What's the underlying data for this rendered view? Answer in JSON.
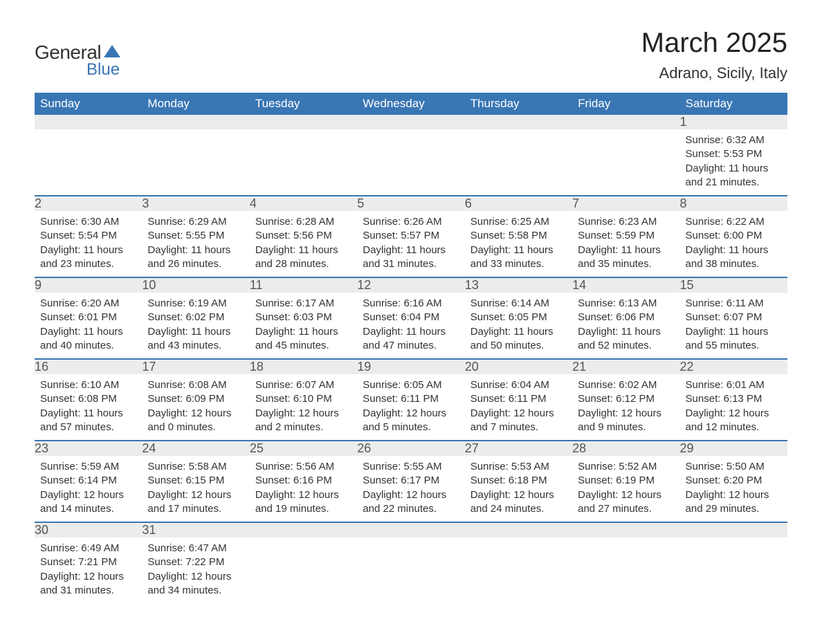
{
  "logo": {
    "general": "General",
    "blue": "Blue",
    "sail_color": "#3976b4"
  },
  "title": {
    "month_year": "March 2025",
    "location": "Adrano, Sicily, Italy"
  },
  "colors": {
    "header_bg": "#3976b4",
    "header_text": "#ffffff",
    "daynum_bg": "#ececec",
    "row_border": "#3976b4",
    "text": "#333333"
  },
  "weekdays": [
    "Sunday",
    "Monday",
    "Tuesday",
    "Wednesday",
    "Thursday",
    "Friday",
    "Saturday"
  ],
  "weeks": [
    [
      null,
      null,
      null,
      null,
      null,
      null,
      {
        "day": "1",
        "sunrise": "Sunrise: 6:32 AM",
        "sunset": "Sunset: 5:53 PM",
        "daylight1": "Daylight: 11 hours",
        "daylight2": "and 21 minutes."
      }
    ],
    [
      {
        "day": "2",
        "sunrise": "Sunrise: 6:30 AM",
        "sunset": "Sunset: 5:54 PM",
        "daylight1": "Daylight: 11 hours",
        "daylight2": "and 23 minutes."
      },
      {
        "day": "3",
        "sunrise": "Sunrise: 6:29 AM",
        "sunset": "Sunset: 5:55 PM",
        "daylight1": "Daylight: 11 hours",
        "daylight2": "and 26 minutes."
      },
      {
        "day": "4",
        "sunrise": "Sunrise: 6:28 AM",
        "sunset": "Sunset: 5:56 PM",
        "daylight1": "Daylight: 11 hours",
        "daylight2": "and 28 minutes."
      },
      {
        "day": "5",
        "sunrise": "Sunrise: 6:26 AM",
        "sunset": "Sunset: 5:57 PM",
        "daylight1": "Daylight: 11 hours",
        "daylight2": "and 31 minutes."
      },
      {
        "day": "6",
        "sunrise": "Sunrise: 6:25 AM",
        "sunset": "Sunset: 5:58 PM",
        "daylight1": "Daylight: 11 hours",
        "daylight2": "and 33 minutes."
      },
      {
        "day": "7",
        "sunrise": "Sunrise: 6:23 AM",
        "sunset": "Sunset: 5:59 PM",
        "daylight1": "Daylight: 11 hours",
        "daylight2": "and 35 minutes."
      },
      {
        "day": "8",
        "sunrise": "Sunrise: 6:22 AM",
        "sunset": "Sunset: 6:00 PM",
        "daylight1": "Daylight: 11 hours",
        "daylight2": "and 38 minutes."
      }
    ],
    [
      {
        "day": "9",
        "sunrise": "Sunrise: 6:20 AM",
        "sunset": "Sunset: 6:01 PM",
        "daylight1": "Daylight: 11 hours",
        "daylight2": "and 40 minutes."
      },
      {
        "day": "10",
        "sunrise": "Sunrise: 6:19 AM",
        "sunset": "Sunset: 6:02 PM",
        "daylight1": "Daylight: 11 hours",
        "daylight2": "and 43 minutes."
      },
      {
        "day": "11",
        "sunrise": "Sunrise: 6:17 AM",
        "sunset": "Sunset: 6:03 PM",
        "daylight1": "Daylight: 11 hours",
        "daylight2": "and 45 minutes."
      },
      {
        "day": "12",
        "sunrise": "Sunrise: 6:16 AM",
        "sunset": "Sunset: 6:04 PM",
        "daylight1": "Daylight: 11 hours",
        "daylight2": "and 47 minutes."
      },
      {
        "day": "13",
        "sunrise": "Sunrise: 6:14 AM",
        "sunset": "Sunset: 6:05 PM",
        "daylight1": "Daylight: 11 hours",
        "daylight2": "and 50 minutes."
      },
      {
        "day": "14",
        "sunrise": "Sunrise: 6:13 AM",
        "sunset": "Sunset: 6:06 PM",
        "daylight1": "Daylight: 11 hours",
        "daylight2": "and 52 minutes."
      },
      {
        "day": "15",
        "sunrise": "Sunrise: 6:11 AM",
        "sunset": "Sunset: 6:07 PM",
        "daylight1": "Daylight: 11 hours",
        "daylight2": "and 55 minutes."
      }
    ],
    [
      {
        "day": "16",
        "sunrise": "Sunrise: 6:10 AM",
        "sunset": "Sunset: 6:08 PM",
        "daylight1": "Daylight: 11 hours",
        "daylight2": "and 57 minutes."
      },
      {
        "day": "17",
        "sunrise": "Sunrise: 6:08 AM",
        "sunset": "Sunset: 6:09 PM",
        "daylight1": "Daylight: 12 hours",
        "daylight2": "and 0 minutes."
      },
      {
        "day": "18",
        "sunrise": "Sunrise: 6:07 AM",
        "sunset": "Sunset: 6:10 PM",
        "daylight1": "Daylight: 12 hours",
        "daylight2": "and 2 minutes."
      },
      {
        "day": "19",
        "sunrise": "Sunrise: 6:05 AM",
        "sunset": "Sunset: 6:11 PM",
        "daylight1": "Daylight: 12 hours",
        "daylight2": "and 5 minutes."
      },
      {
        "day": "20",
        "sunrise": "Sunrise: 6:04 AM",
        "sunset": "Sunset: 6:11 PM",
        "daylight1": "Daylight: 12 hours",
        "daylight2": "and 7 minutes."
      },
      {
        "day": "21",
        "sunrise": "Sunrise: 6:02 AM",
        "sunset": "Sunset: 6:12 PM",
        "daylight1": "Daylight: 12 hours",
        "daylight2": "and 9 minutes."
      },
      {
        "day": "22",
        "sunrise": "Sunrise: 6:01 AM",
        "sunset": "Sunset: 6:13 PM",
        "daylight1": "Daylight: 12 hours",
        "daylight2": "and 12 minutes."
      }
    ],
    [
      {
        "day": "23",
        "sunrise": "Sunrise: 5:59 AM",
        "sunset": "Sunset: 6:14 PM",
        "daylight1": "Daylight: 12 hours",
        "daylight2": "and 14 minutes."
      },
      {
        "day": "24",
        "sunrise": "Sunrise: 5:58 AM",
        "sunset": "Sunset: 6:15 PM",
        "daylight1": "Daylight: 12 hours",
        "daylight2": "and 17 minutes."
      },
      {
        "day": "25",
        "sunrise": "Sunrise: 5:56 AM",
        "sunset": "Sunset: 6:16 PM",
        "daylight1": "Daylight: 12 hours",
        "daylight2": "and 19 minutes."
      },
      {
        "day": "26",
        "sunrise": "Sunrise: 5:55 AM",
        "sunset": "Sunset: 6:17 PM",
        "daylight1": "Daylight: 12 hours",
        "daylight2": "and 22 minutes."
      },
      {
        "day": "27",
        "sunrise": "Sunrise: 5:53 AM",
        "sunset": "Sunset: 6:18 PM",
        "daylight1": "Daylight: 12 hours",
        "daylight2": "and 24 minutes."
      },
      {
        "day": "28",
        "sunrise": "Sunrise: 5:52 AM",
        "sunset": "Sunset: 6:19 PM",
        "daylight1": "Daylight: 12 hours",
        "daylight2": "and 27 minutes."
      },
      {
        "day": "29",
        "sunrise": "Sunrise: 5:50 AM",
        "sunset": "Sunset: 6:20 PM",
        "daylight1": "Daylight: 12 hours",
        "daylight2": "and 29 minutes."
      }
    ],
    [
      {
        "day": "30",
        "sunrise": "Sunrise: 6:49 AM",
        "sunset": "Sunset: 7:21 PM",
        "daylight1": "Daylight: 12 hours",
        "daylight2": "and 31 minutes."
      },
      {
        "day": "31",
        "sunrise": "Sunrise: 6:47 AM",
        "sunset": "Sunset: 7:22 PM",
        "daylight1": "Daylight: 12 hours",
        "daylight2": "and 34 minutes."
      },
      null,
      null,
      null,
      null,
      null
    ]
  ]
}
